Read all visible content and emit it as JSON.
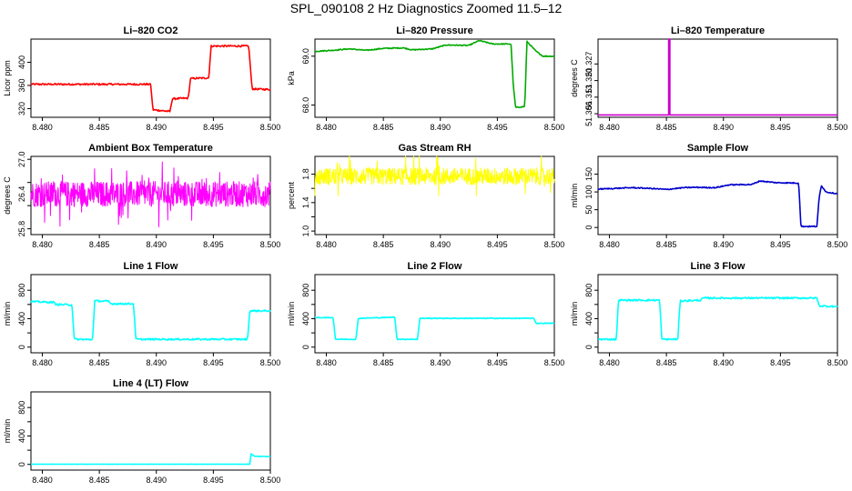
{
  "title": "SPL_090108  2 Hz Diagnostics Zoomed 11.5–12",
  "chart_data": [
    {
      "type": "line",
      "title": "Li–820 CO2",
      "ylabel": "Licor ppm",
      "color": "#ff0000",
      "xlim": [
        8.479,
        8.5
      ],
      "ylim": [
        305,
        440
      ],
      "xticks": [
        "8.480",
        "8.485",
        "8.490",
        "8.495",
        "8.500"
      ],
      "yticks": [
        320,
        360,
        400
      ],
      "ytick_labels": [
        "320",
        "360",
        "400"
      ],
      "noise": 1.5,
      "series": [
        {
          "x": [
            8.479,
            8.4895,
            8.4897,
            8.4912,
            8.4914,
            8.4928,
            8.493,
            8.4946,
            8.4948,
            8.4981,
            8.4984,
            8.5
          ],
          "y": [
            362,
            362,
            318,
            315,
            337,
            338,
            372,
            373,
            428,
            428,
            354,
            353
          ]
        }
      ]
    },
    {
      "type": "line",
      "title": "Li–820 Pressure",
      "ylabel": "kPa",
      "color": "#00aa00",
      "xlim": [
        8.479,
        8.5
      ],
      "ylim": [
        67.75,
        69.35
      ],
      "xticks": [
        "8.480",
        "8.485",
        "8.490",
        "8.495",
        "8.500"
      ],
      "yticks": [
        68.0,
        69.0
      ],
      "ytick_labels": [
        "68.0",
        "69.0"
      ],
      "noise": 0.01,
      "series": [
        {
          "x": [
            8.479,
            8.4805,
            8.482,
            8.4835,
            8.485,
            8.4868,
            8.4875,
            8.4893,
            8.4905,
            8.4925,
            8.4934,
            8.4946,
            8.4962,
            8.4964,
            8.4966,
            8.4974,
            8.4976,
            8.4984,
            8.499,
            8.5
          ],
          "y": [
            69.1,
            69.12,
            69.15,
            69.12,
            69.16,
            69.17,
            69.13,
            69.15,
            69.23,
            69.22,
            69.32,
            69.25,
            69.25,
            68.4,
            67.95,
            67.97,
            69.3,
            69.1,
            69.0,
            69.0
          ]
        }
      ]
    },
    {
      "type": "line",
      "title": "Li–820 Temperature",
      "ylabel": "degrees C",
      "color": "#cc00cc",
      "xlim": [
        8.479,
        8.5
      ],
      "ylim": [
        51.3045,
        51.3375
      ],
      "xticks": [
        "8.480",
        "8.485",
        "8.490",
        "8.495",
        "8.500"
      ],
      "yticks": [
        51.306,
        51.313,
        51.32,
        51.327
      ],
      "ytick_labels": [
        "51.306",
        "51.313",
        "51.320",
        "51.327"
      ],
      "noise": 0,
      "series": [
        {
          "x": [
            8.479,
            8.4852,
            8.4852,
            8.4853,
            8.4853,
            8.5
          ],
          "y": [
            51.3055,
            51.3055,
            51.3375,
            51.3375,
            51.3055,
            51.3055
          ]
        }
      ]
    },
    {
      "type": "line",
      "title": "Ambient Box Temperature",
      "ylabel": "degrees C",
      "color": "#ff00ff",
      "xlim": [
        8.479,
        8.5
      ],
      "ylim": [
        25.7,
        27.05
      ],
      "xticks": [
        "8.480",
        "8.485",
        "8.490",
        "8.495",
        "8.500"
      ],
      "yticks": [
        25.8,
        26.2,
        26.6,
        27.0
      ],
      "ytick_labels": [
        "25.8",
        "26.4",
        "27.0"
      ],
      "ytick_label_values": [
        25.8,
        26.4,
        27.0
      ],
      "noise": 0.22,
      "dense": true,
      "series": [
        {
          "x": [
            8.479,
            8.5
          ],
          "y": [
            26.4,
            26.4
          ]
        }
      ]
    },
    {
      "type": "line",
      "title": "Gas Stream RH",
      "ylabel": "percent",
      "color": "#ffff00",
      "xlim": [
        8.479,
        8.5
      ],
      "ylim": [
        0.95,
        2.05
      ],
      "xticks": [
        "8.480",
        "8.485",
        "8.490",
        "8.495",
        "8.500"
      ],
      "yticks": [
        1.0,
        1.2,
        1.4,
        1.6,
        1.8
      ],
      "ytick_labels": [
        "1.0",
        "1.4",
        "1.8"
      ],
      "ytick_label_values": [
        1.0,
        1.4,
        1.8
      ],
      "noise": 0.12,
      "dense": true,
      "series": [
        {
          "x": [
            8.479,
            8.5
          ],
          "y": [
            1.77,
            1.77
          ]
        }
      ]
    },
    {
      "type": "line",
      "title": "Sample Flow",
      "ylabel": "ml/min",
      "color": "#0000cc",
      "xlim": [
        8.479,
        8.5
      ],
      "ylim": [
        -20,
        200
      ],
      "xticks": [
        "8.480",
        "8.485",
        "8.490",
        "8.495",
        "8.500"
      ],
      "yticks": [
        0,
        50,
        100,
        150
      ],
      "ytick_labels": [
        "0",
        "50",
        "100",
        "150"
      ],
      "noise": 1.5,
      "series": [
        {
          "x": [
            8.479,
            8.4805,
            8.482,
            8.4835,
            8.485,
            8.4865,
            8.4875,
            8.4893,
            8.4905,
            8.4925,
            8.4932,
            8.4946,
            8.4966,
            8.4968,
            8.4982,
            8.4984,
            8.4986,
            8.499,
            8.5
          ],
          "y": [
            108,
            110,
            112,
            110,
            107,
            112,
            113,
            112,
            120,
            121,
            131,
            126,
            125,
            3,
            3,
            85,
            118,
            100,
            95
          ]
        }
      ]
    },
    {
      "type": "line",
      "title": "Line 1 Flow",
      "ylabel": "ml/min",
      "color": "#00ffff",
      "xlim": [
        8.479,
        8.5
      ],
      "ylim": [
        -80,
        1020
      ],
      "xticks": [
        "8.480",
        "8.485",
        "8.490",
        "8.495",
        "8.500"
      ],
      "yticks": [
        0,
        200,
        400,
        600,
        800
      ],
      "ytick_labels": [
        "0",
        "400",
        "800"
      ],
      "ytick_label_values": [
        0,
        400,
        800
      ],
      "noise": 12,
      "series": [
        {
          "x": [
            8.479,
            8.481,
            8.4812,
            8.4826,
            8.4828,
            8.4844,
            8.4846,
            8.4858,
            8.486,
            8.488,
            8.4882,
            8.498,
            8.4982,
            8.5
          ],
          "y": [
            640,
            630,
            600,
            595,
            110,
            105,
            650,
            645,
            610,
            610,
            110,
            110,
            510,
            510
          ]
        }
      ]
    },
    {
      "type": "line",
      "title": "Line 2 Flow",
      "ylabel": "ml/min",
      "color": "#00ffff",
      "xlim": [
        8.479,
        8.5
      ],
      "ylim": [
        -80,
        1020
      ],
      "xticks": [
        "8.480",
        "8.485",
        "8.490",
        "8.495",
        "8.500"
      ],
      "yticks": [
        0,
        200,
        400,
        600,
        800
      ],
      "ytick_labels": [
        "0",
        "400",
        "800"
      ],
      "ytick_label_values": [
        0,
        400,
        800
      ],
      "noise": 6,
      "series": [
        {
          "x": [
            8.479,
            8.4806,
            8.4808,
            8.4826,
            8.4828,
            8.486,
            8.4862,
            8.488,
            8.4882,
            8.4982,
            8.4984,
            8.5
          ],
          "y": [
            415,
            415,
            110,
            110,
            405,
            420,
            110,
            110,
            405,
            405,
            335,
            335
          ]
        }
      ]
    },
    {
      "type": "line",
      "title": "Line 3 Flow",
      "ylabel": "ml/min",
      "color": "#00ffff",
      "xlim": [
        8.479,
        8.5
      ],
      "ylim": [
        -80,
        1020
      ],
      "xticks": [
        "8.480",
        "8.485",
        "8.490",
        "8.495",
        "8.500"
      ],
      "yticks": [
        0,
        200,
        400,
        600,
        800
      ],
      "ytick_labels": [
        "0",
        "400",
        "800"
      ],
      "ytick_label_values": [
        0,
        400,
        800
      ],
      "noise": 12,
      "series": [
        {
          "x": [
            8.479,
            8.4806,
            8.4808,
            8.4844,
            8.4846,
            8.486,
            8.4862,
            8.488,
            8.4882,
            8.4982,
            8.4984,
            8.5
          ],
          "y": [
            110,
            110,
            660,
            660,
            110,
            110,
            650,
            660,
            690,
            690,
            580,
            570
          ]
        }
      ]
    },
    {
      "type": "line",
      "title": "Line 4 (LT) Flow",
      "ylabel": "ml/min",
      "color": "#00ffff",
      "xlim": [
        8.479,
        8.5
      ],
      "ylim": [
        -80,
        1020
      ],
      "xticks": [
        "8.480",
        "8.485",
        "8.490",
        "8.495",
        "8.500"
      ],
      "yticks": [
        0,
        200,
        400,
        600,
        800
      ],
      "ytick_labels": [
        "0",
        "400",
        "800"
      ],
      "ytick_label_values": [
        0,
        400,
        800
      ],
      "noise": 1,
      "series": [
        {
          "x": [
            8.479,
            8.4982,
            8.4983,
            8.4986,
            8.5
          ],
          "y": [
            3,
            3,
            150,
            115,
            110
          ]
        }
      ]
    }
  ]
}
